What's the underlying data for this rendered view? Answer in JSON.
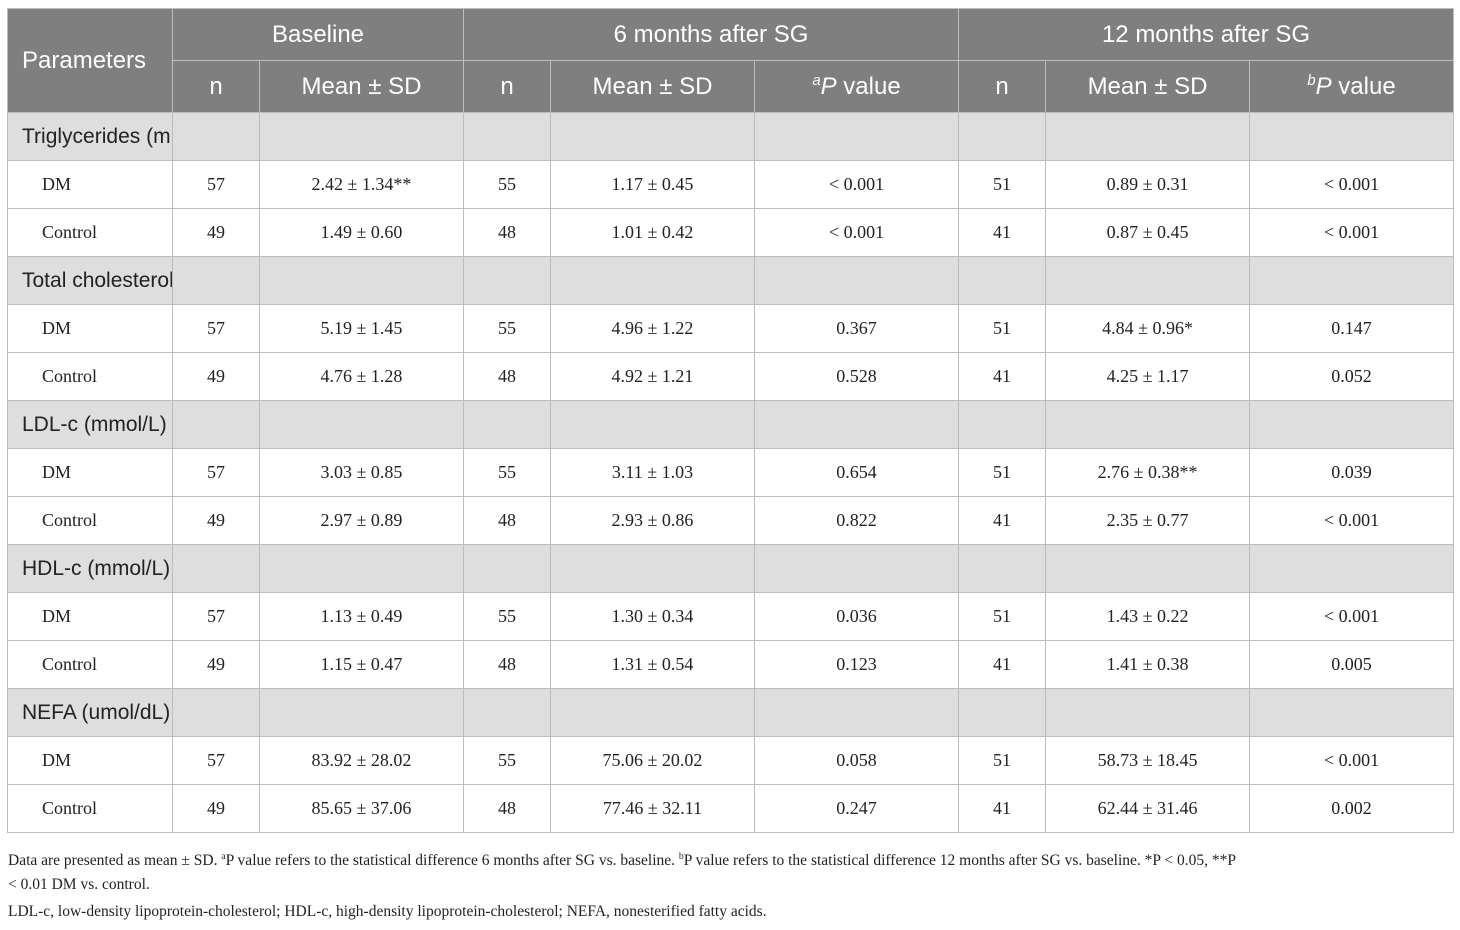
{
  "header": {
    "parameters": "Parameters",
    "baseline": "Baseline",
    "six_months": "6 months after SG",
    "twelve_months": "12 months after SG",
    "n": "n",
    "mean_sd": "Mean ± SD",
    "p_a_sup": "a",
    "p_b_sup": "b",
    "p_italic": "P",
    "p_value": " value"
  },
  "groups": [
    {
      "label": "Triglycerides (mmol/L)",
      "rows": [
        [
          "DM",
          "57",
          "2.42 ± 1.34**",
          "55",
          "1.17 ± 0.45",
          "< 0.001",
          "51",
          "0.89 ± 0.31",
          "< 0.001"
        ],
        [
          "Control",
          "49",
          "1.49 ± 0.60",
          "48",
          "1.01 ± 0.42",
          "< 0.001",
          "41",
          "0.87 ± 0.45",
          "< 0.001"
        ]
      ]
    },
    {
      "label": "Total cholesterol (mmol/L)",
      "rows": [
        [
          "DM",
          "57",
          "5.19 ± 1.45",
          "55",
          "4.96 ± 1.22",
          "0.367",
          "51",
          "4.84 ± 0.96*",
          "0.147"
        ],
        [
          "Control",
          "49",
          "4.76 ± 1.28",
          "48",
          "4.92 ± 1.21",
          "0.528",
          "41",
          "4.25 ± 1.17",
          "0.052"
        ]
      ]
    },
    {
      "label": "LDL-c (mmol/L)",
      "rows": [
        [
          "DM",
          "57",
          "3.03 ± 0.85",
          "55",
          "3.11 ± 1.03",
          "0.654",
          "51",
          "2.76 ± 0.38**",
          "0.039"
        ],
        [
          "Control",
          "49",
          "2.97 ± 0.89",
          "48",
          "2.93 ± 0.86",
          "0.822",
          "41",
          "2.35 ± 0.77",
          "< 0.001"
        ]
      ]
    },
    {
      "label": "HDL-c (mmol/L)",
      "rows": [
        [
          "DM",
          "57",
          "1.13 ± 0.49",
          "55",
          "1.30 ± 0.34",
          "0.036",
          "51",
          "1.43 ± 0.22",
          "< 0.001"
        ],
        [
          "Control",
          "49",
          "1.15 ± 0.47",
          "48",
          "1.31 ± 0.54",
          "0.123",
          "41",
          "1.41 ± 0.38",
          "0.005"
        ]
      ]
    },
    {
      "label": "NEFA (umol/dL)",
      "rows": [
        [
          "DM",
          "57",
          "83.92 ± 28.02",
          "55",
          "75.06 ± 20.02",
          "0.058",
          "51",
          "58.73 ± 18.45",
          "< 0.001"
        ],
        [
          "Control",
          "49",
          "85.65 ± 37.06",
          "48",
          "77.46 ± 32.11",
          "0.247",
          "41",
          "62.44 ± 31.46",
          "0.002"
        ]
      ]
    }
  ],
  "footnotes": {
    "line1_part1": "Data are presented as mean ± SD. ",
    "line1_sup_a": "a",
    "line1_part2": "P value refers to the statistical difference 6 months after SG vs. baseline. ",
    "line1_sup_b": "b",
    "line1_part3": "P value refers to the statistical difference 12 months after SG vs. baseline. *P < 0.05, **P",
    "line2": "< 0.01 DM vs. control.",
    "line3": "LDL-c, low-density lipoprotein-cholesterol; HDL-c, high-density lipoprotein-cholesterol; NEFA, nonesterified fatty acids."
  }
}
